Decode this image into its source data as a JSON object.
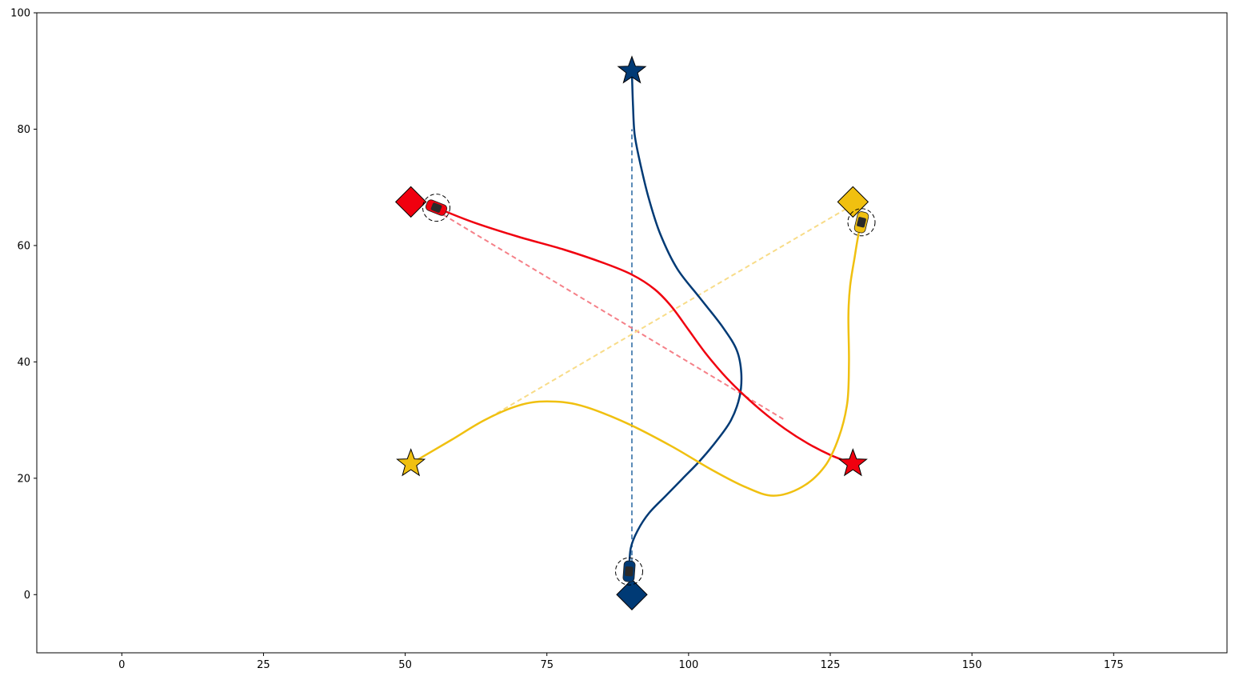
{
  "chart_data": {
    "type": "line",
    "title": "",
    "xlabel": "",
    "ylabel": "",
    "xlim": [
      -15,
      195
    ],
    "ylim": [
      -10,
      100
    ],
    "grid": false,
    "x_ticks": [
      0,
      25,
      50,
      75,
      100,
      125,
      150,
      175
    ],
    "y_ticks": [
      0,
      20,
      40,
      60,
      80,
      100
    ],
    "colors": {
      "blue": "#003a75",
      "red": "#f0000f",
      "yellow": "#f0c010",
      "blue_light": "#5b8bb8",
      "red_light": "#f58088",
      "yellow_light": "#f8dc88"
    },
    "series": [
      {
        "color": "blue",
        "start": [
          90,
          0
        ],
        "goal": [
          90,
          90
        ],
        "vehicle": [
          89.5,
          4
        ],
        "path": [
          [
            89.5,
            4
          ],
          [
            89.8,
            8
          ],
          [
            91,
            11
          ],
          [
            93,
            14
          ],
          [
            96,
            17
          ],
          [
            99,
            20
          ],
          [
            102,
            23
          ],
          [
            105,
            26.5
          ],
          [
            107.5,
            30
          ],
          [
            109,
            34
          ],
          [
            109.3,
            38
          ],
          [
            108.5,
            42
          ],
          [
            106,
            46
          ],
          [
            102,
            51
          ],
          [
            98,
            56
          ],
          [
            95,
            62
          ],
          [
            93,
            68
          ],
          [
            91.5,
            74
          ],
          [
            90.5,
            79
          ],
          [
            90.2,
            84
          ],
          [
            90,
            90
          ]
        ],
        "reference_path": [
          [
            90,
            4
          ],
          [
            90,
            80
          ]
        ]
      },
      {
        "color": "red",
        "start": [
          51,
          67.5
        ],
        "goal": [
          129,
          22.5
        ],
        "vehicle": [
          55.5,
          66.5
        ],
        "path": [
          [
            55.5,
            66.5
          ],
          [
            62,
            64
          ],
          [
            70,
            61.5
          ],
          [
            78,
            59.3
          ],
          [
            85,
            57
          ],
          [
            90,
            55
          ],
          [
            94,
            52.5
          ],
          [
            97,
            49.5
          ],
          [
            100,
            45.5
          ],
          [
            103,
            41.5
          ],
          [
            106,
            38
          ],
          [
            109,
            35
          ],
          [
            113,
            31.5
          ],
          [
            117,
            28.5
          ],
          [
            121,
            26
          ],
          [
            125,
            24
          ],
          [
            129,
            22.5
          ]
        ],
        "reference_path": [
          [
            55.5,
            66
          ],
          [
            117,
            30
          ]
        ]
      },
      {
        "color": "yellow",
        "start": [
          129,
          67.5
        ],
        "goal": [
          51,
          22.5
        ],
        "vehicle": [
          130.5,
          64
        ],
        "path": [
          [
            130.5,
            64
          ],
          [
            130,
            62
          ],
          [
            129.3,
            58
          ],
          [
            128.5,
            53
          ],
          [
            128.2,
            48
          ],
          [
            128.3,
            40
          ],
          [
            128,
            33
          ],
          [
            126.5,
            27
          ],
          [
            124,
            22
          ],
          [
            120,
            18.5
          ],
          [
            115,
            17
          ],
          [
            110,
            18.5
          ],
          [
            104,
            21.5
          ],
          [
            97,
            25.5
          ],
          [
            89,
            29.5
          ],
          [
            81,
            32.5
          ],
          [
            75,
            33.2
          ],
          [
            70,
            32.5
          ],
          [
            64,
            30
          ],
          [
            58,
            26.5
          ],
          [
            51,
            22.5
          ]
        ],
        "reference_path": [
          [
            129,
            67
          ],
          [
            65,
            30.5
          ]
        ]
      }
    ]
  }
}
